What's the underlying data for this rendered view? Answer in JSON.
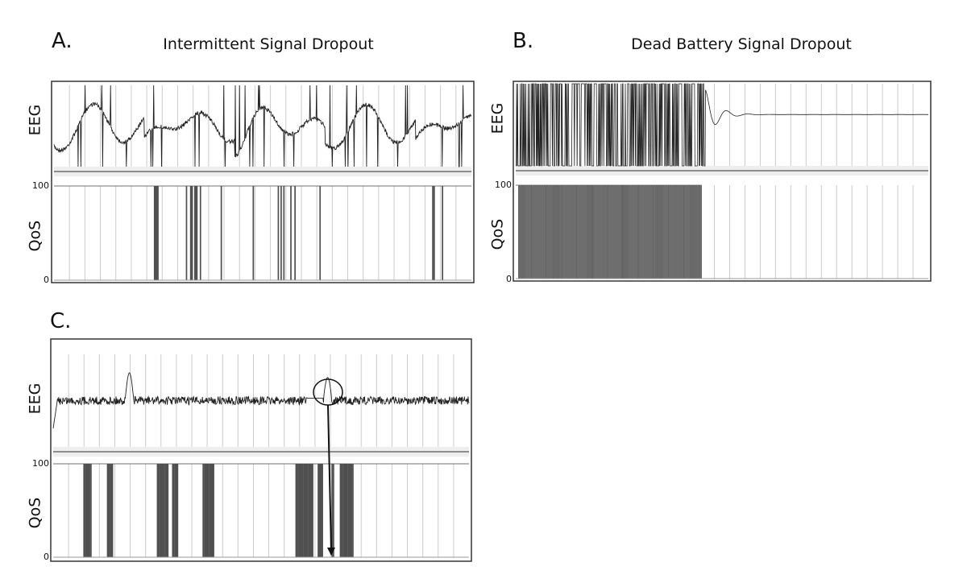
{
  "chart_data": [
    {
      "type": "line",
      "letter": "A.",
      "title": "Intermittent Signal Dropout",
      "ylabel_top": "EEG",
      "ylabel_bottom": "QoS",
      "qos_ticks": [
        "100",
        "0"
      ],
      "qos_ylim": [
        0,
        100
      ],
      "qos_dropouts": [
        [
          7.2,
          7.5
        ],
        [
          9.5,
          9.6
        ],
        [
          9.8,
          10.0
        ],
        [
          10.1,
          10.3
        ],
        [
          10.5,
          10.6
        ],
        [
          12.0,
          12.1
        ],
        [
          14.3,
          14.4
        ],
        [
          16.1,
          16.2
        ],
        [
          16.3,
          16.4
        ],
        [
          16.5,
          16.6
        ],
        [
          17.0,
          17.1
        ],
        [
          17.3,
          17.4
        ],
        [
          19.1,
          19.2
        ],
        [
          27.2,
          27.4
        ],
        [
          27.9,
          28.0
        ]
      ]
    },
    {
      "type": "line",
      "letter": "B.",
      "title": "Dead Battery Signal Dropout",
      "ylabel_top": "EEG",
      "ylabel_bottom": "QoS",
      "qos_ticks": [
        "100",
        "0"
      ],
      "qos_ylim": [
        0,
        100
      ],
      "qos_dropouts": [
        [
          0.2,
          13.5
        ]
      ],
      "qos_flat_after": 13.5
    },
    {
      "type": "line",
      "letter": "C.",
      "title": "",
      "ylabel_top": "EEG",
      "ylabel_bottom": "QoS",
      "qos_ticks": [
        "100",
        "0"
      ],
      "qos_ylim": [
        0,
        100
      ],
      "qos_dropouts": [
        [
          2.2,
          2.8
        ],
        [
          3.9,
          4.3
        ],
        [
          7.5,
          8.3
        ],
        [
          8.6,
          9.0
        ],
        [
          10.8,
          11.6
        ],
        [
          17.5,
          18.8
        ],
        [
          19.1,
          19.5
        ],
        [
          20.1,
          20.3
        ],
        [
          20.7,
          21.7
        ]
      ]
    }
  ]
}
